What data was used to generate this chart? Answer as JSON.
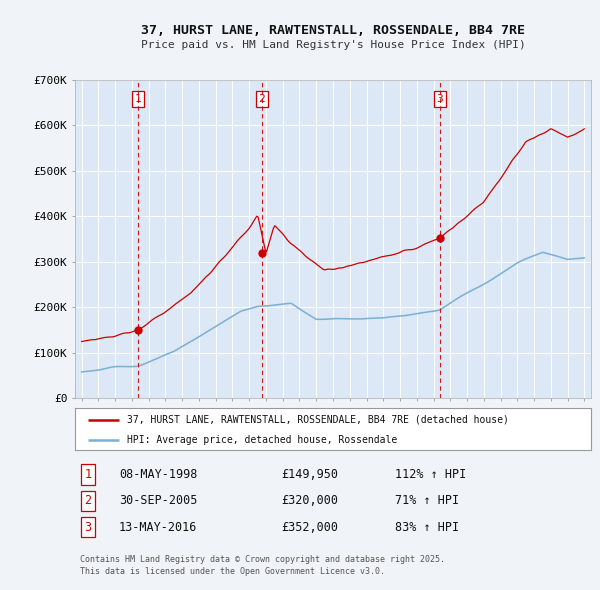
{
  "title_line1": "37, HURST LANE, RAWTENSTALL, ROSSENDALE, BB4 7RE",
  "title_line2": "Price paid vs. HM Land Registry's House Price Index (HPI)",
  "sale_color": "#cc0000",
  "hpi_color": "#7bafd4",
  "plot_bg_color": "#dce8f5",
  "bg_color": "#f0f4f8",
  "grid_color": "#ffffff",
  "vline_color": "#cc0000",
  "ylim": [
    0,
    700000
  ],
  "yticks": [
    0,
    100000,
    200000,
    300000,
    400000,
    500000,
    600000,
    700000
  ],
  "ytick_labels": [
    "£0",
    "£100K",
    "£200K",
    "£300K",
    "£400K",
    "£500K",
    "£600K",
    "£700K"
  ],
  "xlim": [
    1994.6,
    2025.4
  ],
  "xticks": [
    1995,
    1996,
    1997,
    1998,
    1999,
    2000,
    2001,
    2002,
    2003,
    2004,
    2005,
    2006,
    2007,
    2008,
    2009,
    2010,
    2011,
    2012,
    2013,
    2014,
    2015,
    2016,
    2017,
    2018,
    2019,
    2020,
    2021,
    2022,
    2023,
    2024,
    2025
  ],
  "transactions": [
    {
      "num": 1,
      "date": 1998.35,
      "price": 149950,
      "label": "08-MAY-1998",
      "price_str": "£149,950",
      "pct": "112%",
      "dir": "↑"
    },
    {
      "num": 2,
      "date": 2005.75,
      "price": 320000,
      "label": "30-SEP-2005",
      "price_str": "£320,000",
      "pct": "71%",
      "dir": "↑"
    },
    {
      "num": 3,
      "date": 2016.37,
      "price": 352000,
      "label": "13-MAY-2016",
      "price_str": "£352,000",
      "pct": "83%",
      "dir": "↑"
    }
  ],
  "legend_sale_label": "37, HURST LANE, RAWTENSTALL, ROSSENDALE, BB4 7RE (detached house)",
  "legend_hpi_label": "HPI: Average price, detached house, Rossendale",
  "footnote_line1": "Contains HM Land Registry data © Crown copyright and database right 2025.",
  "footnote_line2": "This data is licensed under the Open Government Licence v3.0."
}
